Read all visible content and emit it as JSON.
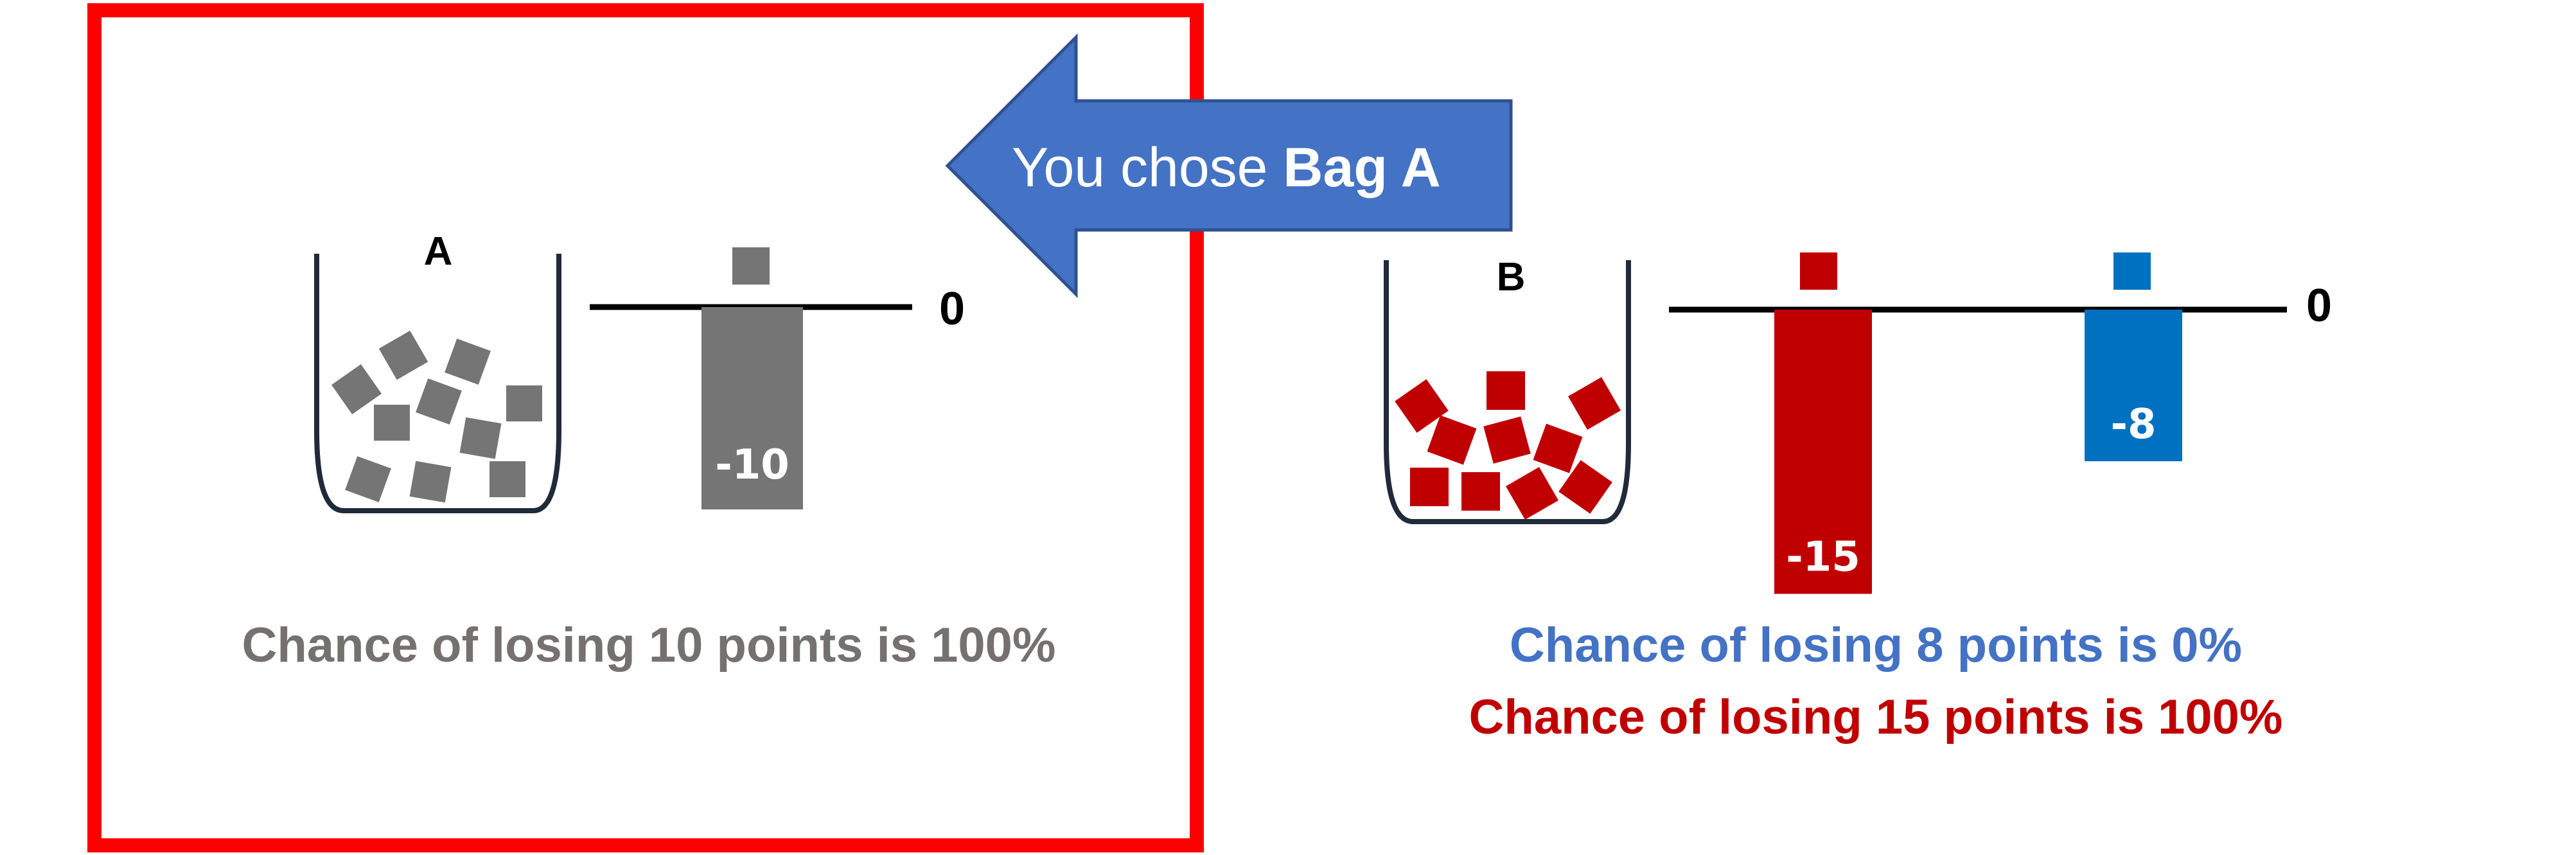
{
  "colors": {
    "gray": "#757575",
    "red": "#c00000",
    "blue": "#0070c0",
    "highlight": "#ff0000",
    "arrow_fill": "#4472c4",
    "arrow_stroke": "#2f528f",
    "bag_outline": "#1f2a3a",
    "text_gray": "#767171",
    "text_blue": "#4472c4",
    "text_red": "#c00000"
  },
  "selection_arrow": {
    "prefix": "You chose ",
    "bold": "Bag A"
  },
  "bag_a": {
    "label": "A",
    "zero_label": "0",
    "bar_value": -10,
    "bar_label": "-10",
    "bar_color": "gray",
    "chance_text": "Chance of losing 10 points is 100%",
    "selected": true
  },
  "bag_b": {
    "label": "B",
    "zero_label": "0",
    "bars": [
      {
        "value": -15,
        "label": "-15",
        "color": "red"
      },
      {
        "value": -8,
        "label": "-8",
        "color": "blue"
      }
    ],
    "chance_texts": [
      {
        "text": "Chance of losing 8 points is 0%",
        "color": "blue"
      },
      {
        "text": "Chance of losing 15 points is 100%",
        "color": "red"
      }
    ]
  }
}
